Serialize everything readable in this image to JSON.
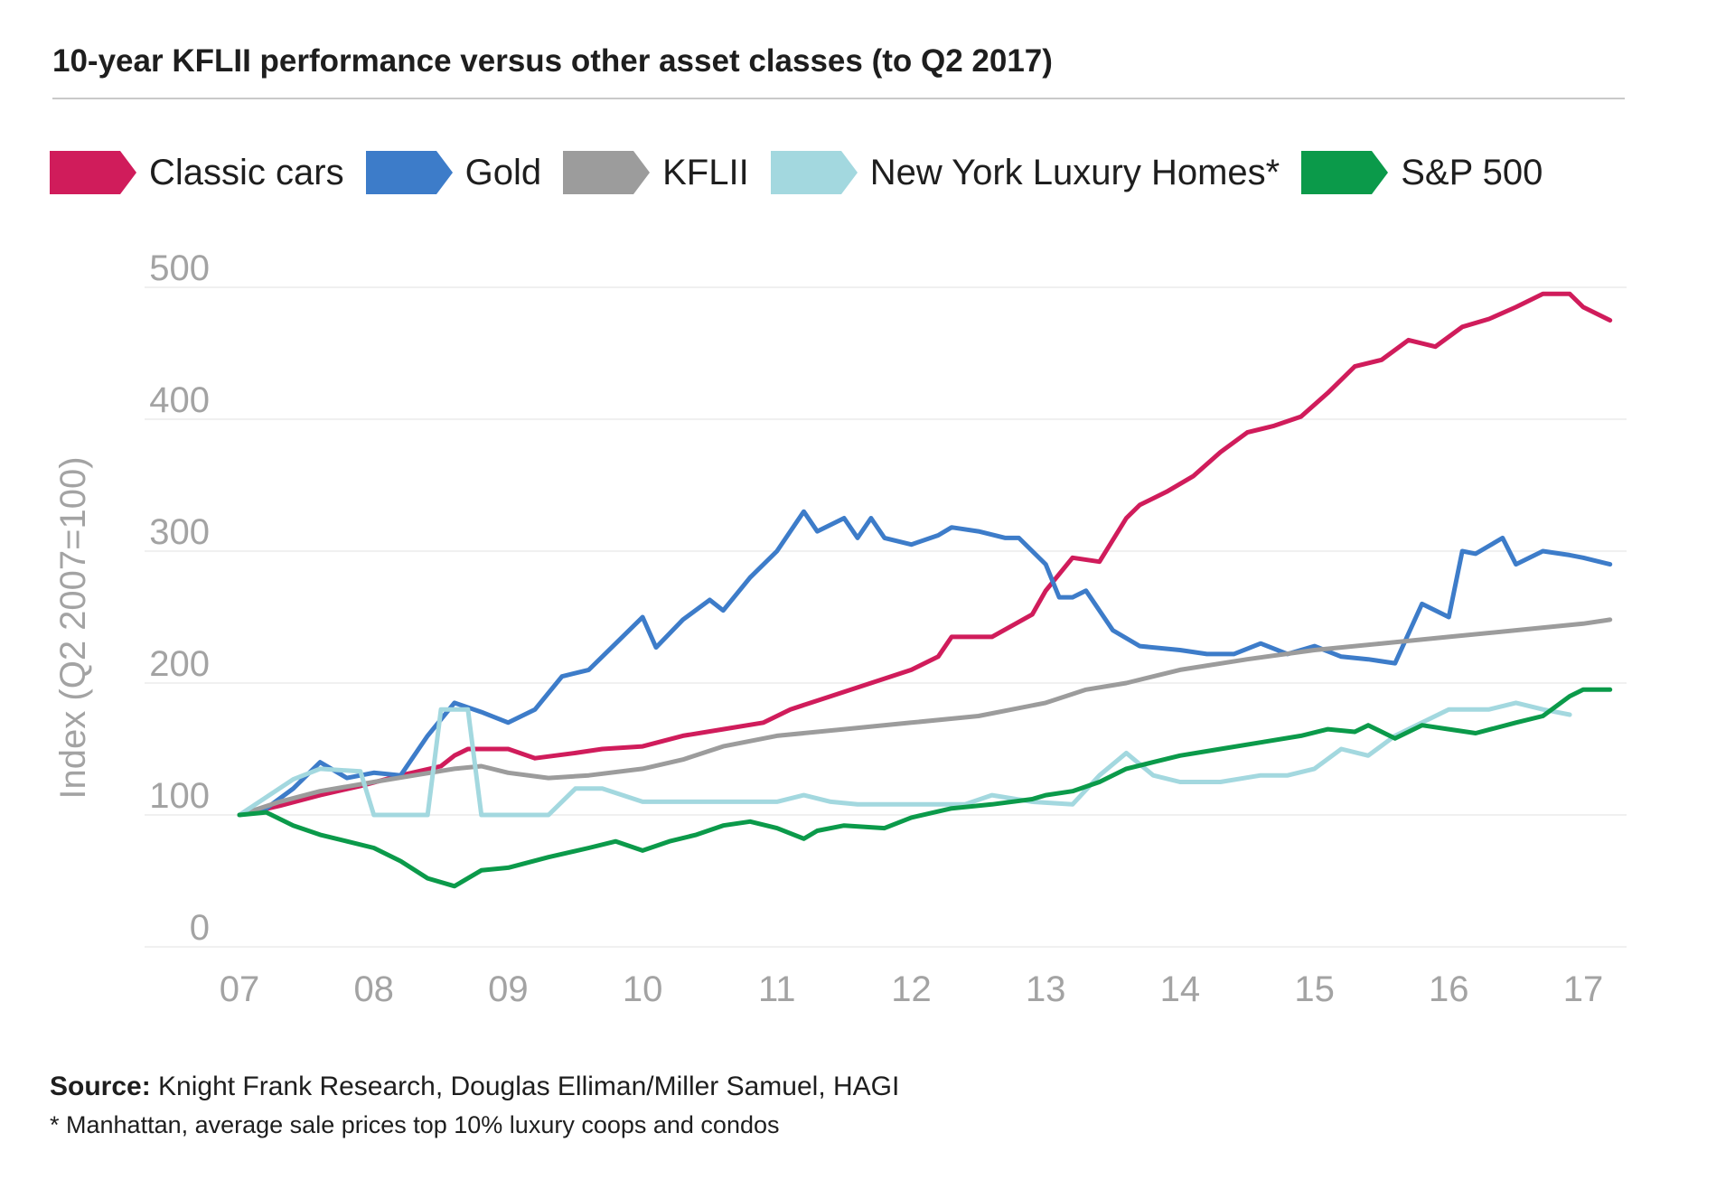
{
  "title": "10-year KFLII performance versus other asset classes (to Q2 2017)",
  "source_label": "Source:",
  "source_text": " Knight Frank Research, Douglas Elliman/Miller Samuel, HAGI",
  "note": "* Manhattan, average sale prices top 10% luxury coops and condos",
  "chart_data": {
    "type": "line",
    "title": "10-year KFLII performance versus other asset classes (to Q2 2017)",
    "xlabel": "",
    "ylabel": "Index (Q2 2007=100)",
    "xlim": [
      2007.0,
      2017.2
    ],
    "ylim": [
      0,
      500
    ],
    "yticks": [
      0,
      100,
      200,
      300,
      400,
      500
    ],
    "xticks": [
      {
        "value": 2007,
        "label": "07"
      },
      {
        "value": 2008,
        "label": "08"
      },
      {
        "value": 2009,
        "label": "09"
      },
      {
        "value": 2010,
        "label": "10"
      },
      {
        "value": 2011,
        "label": "11"
      },
      {
        "value": 2012,
        "label": "12"
      },
      {
        "value": 2013,
        "label": "13"
      },
      {
        "value": 2014,
        "label": "14"
      },
      {
        "value": 2015,
        "label": "15"
      },
      {
        "value": 2016,
        "label": "16"
      },
      {
        "value": 2017,
        "label": "17"
      }
    ],
    "grid": true,
    "legend_position": "top",
    "series": [
      {
        "name": "Classic cars",
        "color": "#d01c5b",
        "x": [
          2007.0,
          2007.3,
          2007.6,
          2007.9,
          2008.2,
          2008.5,
          2008.6,
          2008.7,
          2009.0,
          2009.2,
          2009.5,
          2009.7,
          2010.0,
          2010.3,
          2010.6,
          2010.9,
          2011.1,
          2011.4,
          2011.7,
          2012.0,
          2012.2,
          2012.3,
          2012.6,
          2012.9,
          2013.0,
          2013.2,
          2013.4,
          2013.6,
          2013.7,
          2013.9,
          2014.1,
          2014.3,
          2014.5,
          2014.7,
          2014.9,
          2015.1,
          2015.3,
          2015.5,
          2015.7,
          2015.9,
          2016.1,
          2016.3,
          2016.5,
          2016.7,
          2016.9,
          2017.0,
          2017.2
        ],
        "y": [
          100,
          107,
          115,
          122,
          130,
          137,
          145,
          150,
          150,
          143,
          147,
          150,
          152,
          160,
          165,
          170,
          180,
          190,
          200,
          210,
          220,
          235,
          235,
          252,
          270,
          295,
          292,
          325,
          335,
          345,
          357,
          375,
          390,
          395,
          402,
          420,
          440,
          445,
          460,
          455,
          470,
          476,
          485,
          495,
          495,
          485,
          475
        ]
      },
      {
        "name": "Gold",
        "color": "#3d7cc9",
        "x": [
          2007.0,
          2007.2,
          2007.4,
          2007.6,
          2007.8,
          2008.0,
          2008.2,
          2008.4,
          2008.6,
          2008.8,
          2009.0,
          2009.2,
          2009.4,
          2009.6,
          2009.8,
          2010.0,
          2010.1,
          2010.3,
          2010.5,
          2010.6,
          2010.8,
          2011.0,
          2011.2,
          2011.3,
          2011.5,
          2011.6,
          2011.7,
          2011.8,
          2012.0,
          2012.2,
          2012.3,
          2012.5,
          2012.7,
          2012.8,
          2013.0,
          2013.1,
          2013.2,
          2013.3,
          2013.5,
          2013.7,
          2014.0,
          2014.2,
          2014.4,
          2014.6,
          2014.8,
          2015.0,
          2015.2,
          2015.4,
          2015.6,
          2015.8,
          2016.0,
          2016.1,
          2016.2,
          2016.4,
          2016.5,
          2016.7,
          2016.9,
          2017.0,
          2017.2
        ],
        "y": [
          100,
          105,
          120,
          140,
          128,
          132,
          130,
          160,
          185,
          178,
          170,
          180,
          205,
          210,
          230,
          250,
          227,
          248,
          263,
          255,
          280,
          300,
          330,
          315,
          325,
          310,
          325,
          310,
          305,
          312,
          318,
          315,
          310,
          310,
          290,
          265,
          265,
          270,
          240,
          228,
          225,
          222,
          222,
          230,
          222,
          228,
          220,
          218,
          215,
          260,
          250,
          300,
          298,
          310,
          290,
          300,
          297,
          295,
          290
        ]
      },
      {
        "name": "KFLII",
        "color": "#9c9c9c",
        "x": [
          2007.0,
          2007.3,
          2007.6,
          2008.0,
          2008.3,
          2008.6,
          2008.8,
          2009.0,
          2009.3,
          2009.6,
          2010.0,
          2010.3,
          2010.6,
          2011.0,
          2011.5,
          2012.0,
          2012.5,
          2013.0,
          2013.3,
          2013.6,
          2014.0,
          2014.5,
          2015.0,
          2015.5,
          2016.0,
          2016.5,
          2017.0,
          2017.2
        ],
        "y": [
          100,
          110,
          118,
          125,
          130,
          135,
          137,
          132,
          128,
          130,
          135,
          142,
          152,
          160,
          165,
          170,
          175,
          185,
          195,
          200,
          210,
          218,
          225,
          230,
          235,
          240,
          245,
          248
        ]
      },
      {
        "name": "New York Luxury Homes*",
        "color": "#a3d8df",
        "x": [
          2007.0,
          2007.4,
          2007.6,
          2007.9,
          2008.0,
          2008.2,
          2008.4,
          2008.5,
          2008.7,
          2008.8,
          2009.0,
          2009.3,
          2009.5,
          2009.7,
          2010.0,
          2010.3,
          2010.6,
          2010.9,
          2011.0,
          2011.2,
          2011.4,
          2011.6,
          2012.0,
          2012.4,
          2012.6,
          2012.9,
          2013.2,
          2013.4,
          2013.6,
          2013.8,
          2014.0,
          2014.3,
          2014.6,
          2014.8,
          2015.0,
          2015.2,
          2015.4,
          2015.6,
          2015.8,
          2016.0,
          2016.3,
          2016.5,
          2016.7,
          2016.9
        ],
        "y": [
          100,
          127,
          135,
          133,
          100,
          100,
          100,
          180,
          180,
          100,
          100,
          100,
          120,
          120,
          110,
          110,
          110,
          110,
          110,
          115,
          110,
          108,
          108,
          108,
          115,
          110,
          108,
          130,
          147,
          130,
          125,
          125,
          130,
          130,
          135,
          150,
          145,
          160,
          170,
          180,
          180,
          185,
          180,
          176
        ]
      },
      {
        "name": "S&P 500",
        "color": "#0b9a4a",
        "x": [
          2007.0,
          2007.2,
          2007.4,
          2007.6,
          2007.8,
          2008.0,
          2008.2,
          2008.4,
          2008.6,
          2008.8,
          2009.0,
          2009.3,
          2009.6,
          2009.8,
          2010.0,
          2010.2,
          2010.4,
          2010.6,
          2010.8,
          2011.0,
          2011.2,
          2011.3,
          2011.5,
          2011.8,
          2012.0,
          2012.3,
          2012.6,
          2012.9,
          2013.0,
          2013.2,
          2013.4,
          2013.6,
          2013.8,
          2014.0,
          2014.3,
          2014.6,
          2014.9,
          2015.1,
          2015.3,
          2015.4,
          2015.6,
          2015.8,
          2016.0,
          2016.2,
          2016.5,
          2016.7,
          2016.9,
          2017.0,
          2017.2
        ],
        "y": [
          100,
          102,
          92,
          85,
          80,
          75,
          65,
          52,
          46,
          58,
          60,
          68,
          75,
          80,
          73,
          80,
          85,
          92,
          95,
          90,
          82,
          88,
          92,
          90,
          98,
          105,
          108,
          112,
          115,
          118,
          125,
          135,
          140,
          145,
          150,
          155,
          160,
          165,
          163,
          168,
          158,
          168,
          165,
          162,
          170,
          175,
          190,
          195,
          195
        ]
      }
    ]
  }
}
